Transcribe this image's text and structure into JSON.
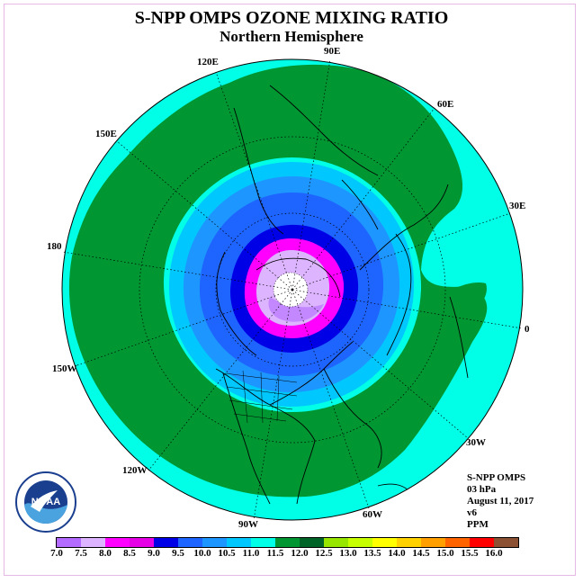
{
  "title": "S-NPP OMPS OZONE MIXING RATIO",
  "subtitle": "Northern Hemisphere",
  "longitude_labels": [
    "90E",
    "60E",
    "30E",
    "0",
    "30W",
    "60W",
    "90W",
    "120W",
    "150W",
    "180",
    "150E",
    "120E"
  ],
  "info": {
    "instrument": "S-NPP OMPS",
    "level": "03 hPa",
    "date": "August 11, 2017",
    "version": "v6",
    "units": "PPM"
  },
  "logo_text": "NOAA",
  "colorbar": {
    "ticks": [
      "7.0",
      "7.5",
      "8.0",
      "8.5",
      "9.0",
      "9.5",
      "10.0",
      "10.5",
      "11.0",
      "11.5",
      "12.0",
      "12.5",
      "13.0",
      "13.5",
      "14.0",
      "14.5",
      "15.0",
      "15.5",
      "16.0"
    ],
    "colors": [
      "#b36bff",
      "#dcb4ff",
      "#ff00ff",
      "#e600e6",
      "#0000e6",
      "#1e64ff",
      "#1e96ff",
      "#00c8ff",
      "#00ffe6",
      "#009632",
      "#006428",
      "#96e600",
      "#c8ff00",
      "#ffff00",
      "#ffd200",
      "#ffa000",
      "#ff6400",
      "#ff0000",
      "#8c5032"
    ]
  },
  "map_fields": [
    {
      "level": "11.0-11.5",
      "color": "#00ffe6"
    },
    {
      "level": "11.5-12.0",
      "color": "#009632"
    },
    {
      "level": "10.5-11.0",
      "color": "#00c8ff"
    },
    {
      "level": "10.0-10.5",
      "color": "#1e96ff"
    },
    {
      "level": "9.5-10.0",
      "color": "#1e64ff"
    },
    {
      "level": "9.0-9.5",
      "color": "#0000e6"
    },
    {
      "level": "8.0-8.5",
      "color": "#ff00ff"
    },
    {
      "level": "7.5-8.0",
      "color": "#dcb4ff"
    },
    {
      "level": "7.0-7.5",
      "color": "#b36bff"
    }
  ]
}
